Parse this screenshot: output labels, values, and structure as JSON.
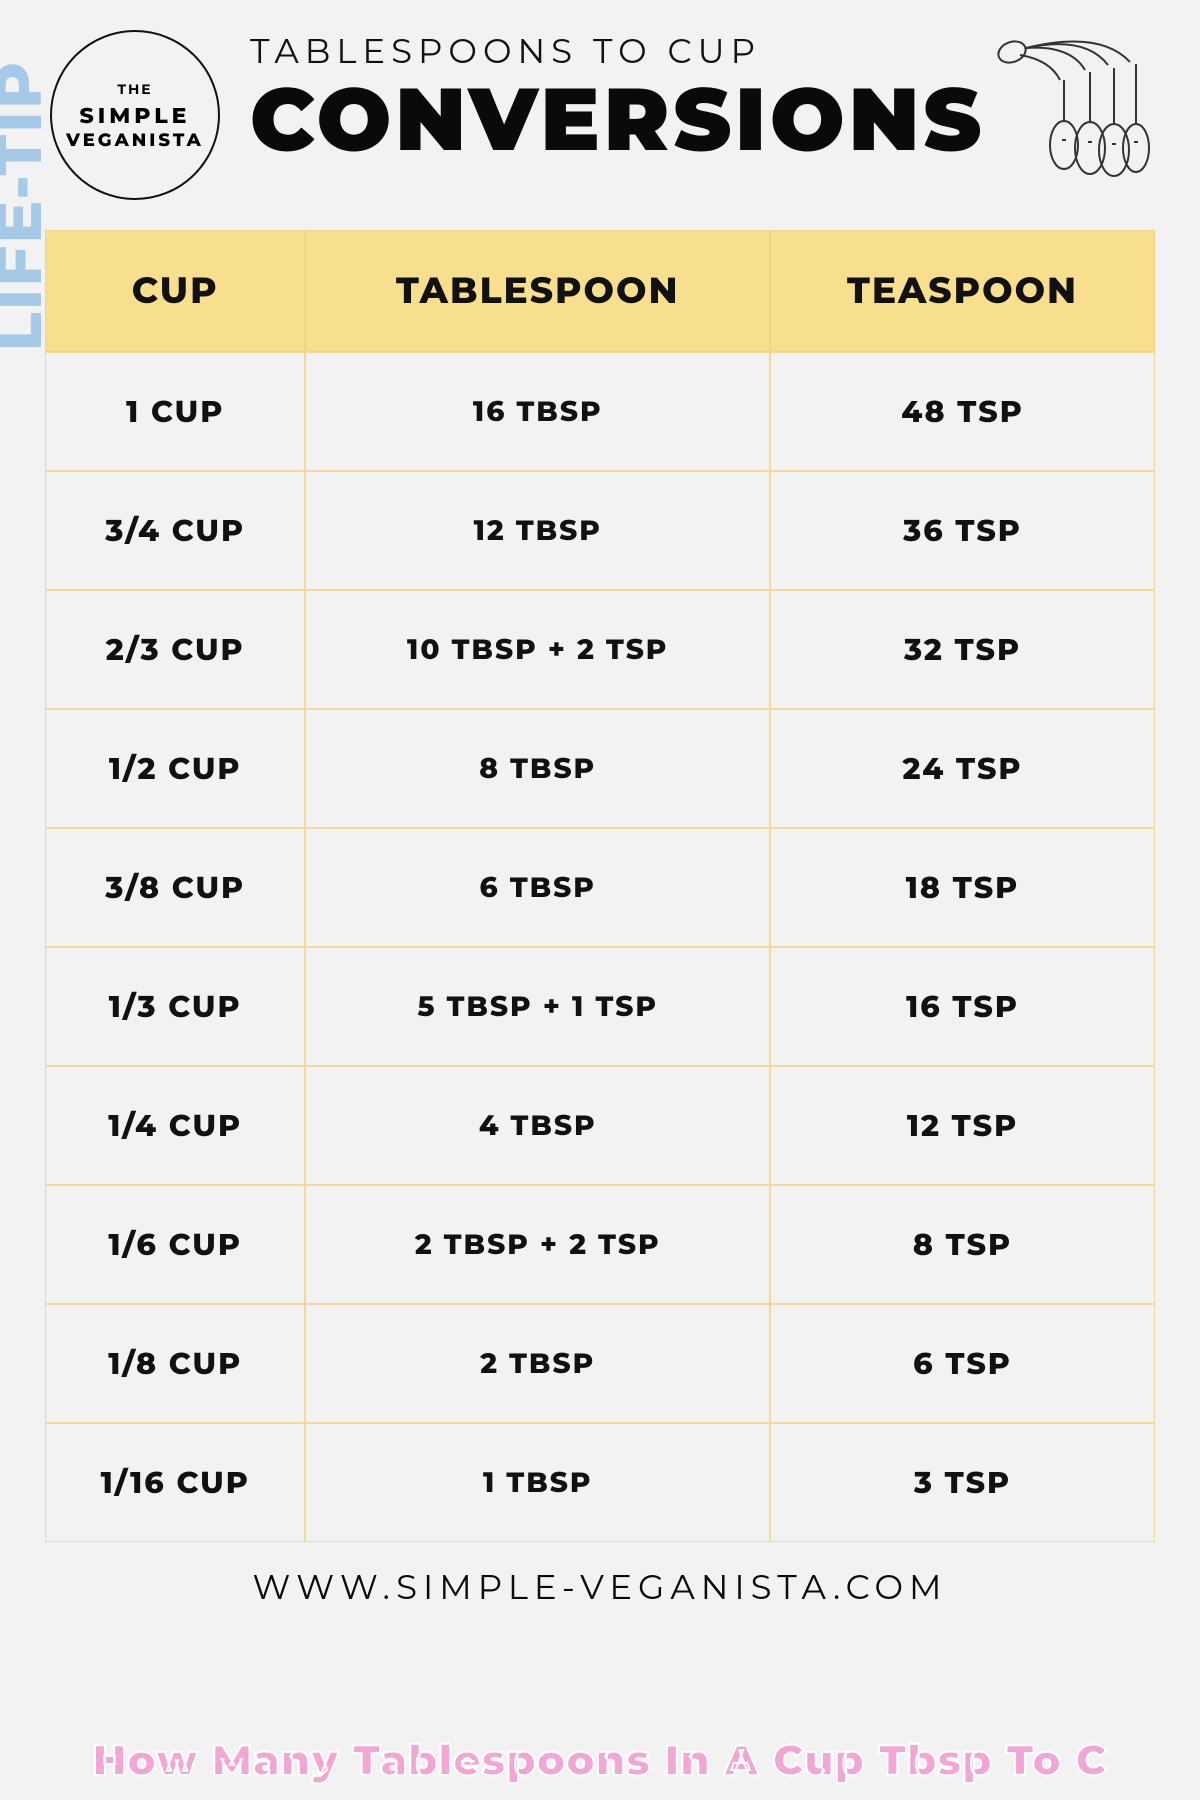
{
  "watermark_left": "LIFE-TIP",
  "logo": {
    "line1": "THE",
    "line2": "SIMPLE",
    "line3": "VEGANISTA"
  },
  "header": {
    "subtitle": "TABLESPOONS TO CUP",
    "title": "CONVERSIONS"
  },
  "table": {
    "columns": [
      "CUP",
      "TABLESPOON",
      "TEASPOON"
    ],
    "rows": [
      [
        "1 CUP",
        "16 TBSP",
        "48 TSP"
      ],
      [
        "3/4 CUP",
        "12 TBSP",
        "36 TSP"
      ],
      [
        "2/3 CUP",
        "10 TBSP + 2 TSP",
        "32 TSP"
      ],
      [
        "1/2 CUP",
        "8 TBSP",
        "24 TSP"
      ],
      [
        "3/8 CUP",
        "6 TBSP",
        "18 TSP"
      ],
      [
        "1/3 CUP",
        "5 TBSP + 1 TSP",
        "16 TSP"
      ],
      [
        "1/4 CUP",
        "4 TBSP",
        "12 TSP"
      ],
      [
        "1/6 CUP",
        "2 TBSP + 2 TSP",
        "8 TSP"
      ],
      [
        "1/8 CUP",
        "2 TBSP",
        "6 TSP"
      ],
      [
        "1/16 CUP",
        "1 TBSP",
        "3 TSP"
      ]
    ],
    "header_bg": "#f7df8e",
    "cell_bg": "#f2f2f2",
    "border_color": "#f1d999",
    "header_fontsize": 36,
    "cell_fontsize": 30
  },
  "footer_url": "WWW.SIMPLE-VEGANISTA.COM",
  "bottom_caption": "How Many Tablespoons In A Cup Tbsp To C",
  "colors": {
    "page_bg": "#f2f2f2",
    "text": "#111111",
    "watermark": "#9fc5e8",
    "caption_fill": "#f1a6d6",
    "caption_stroke": "#ffffff"
  }
}
